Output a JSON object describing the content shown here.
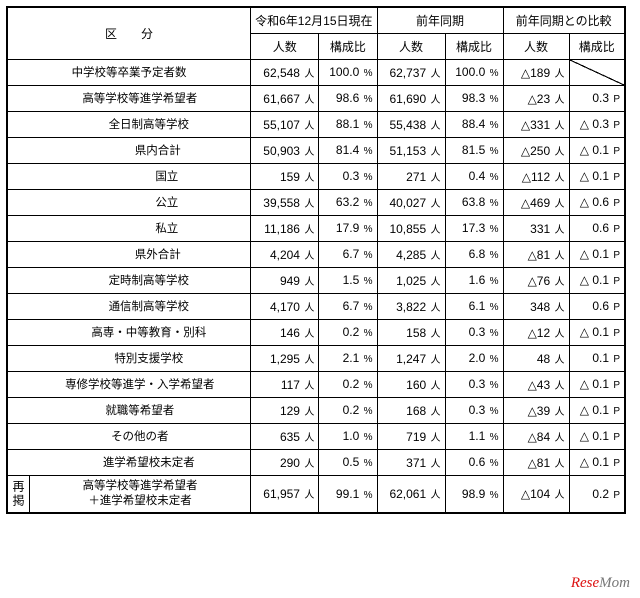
{
  "header": {
    "kubun": "区　　分",
    "current": "令和6年12月15日現在",
    "prev": "前年同期",
    "comp": "前年同期との比較",
    "count": "人数",
    "ratio": "構成比"
  },
  "saikei": "再掲",
  "unit_person": "人",
  "unit_pct": "%",
  "unit_p": "P",
  "rows": [
    {
      "indent": 0,
      "label": "中学校等卒業予定者数",
      "c1": "62,548",
      "c2": "100.0",
      "p1": "62,737",
      "p2": "100.0",
      "d1": "△189",
      "d2": null,
      "slash": true
    },
    {
      "indent": 1,
      "label": "高等学校等進学希望者",
      "c1": "61,667",
      "c2": "98.6",
      "p1": "61,690",
      "p2": "98.3",
      "d1": "△23",
      "d2": "0.3"
    },
    {
      "indent": 2,
      "label": "全日制高等学校",
      "c1": "55,107",
      "c2": "88.1",
      "p1": "55,438",
      "p2": "88.4",
      "d1": "△331",
      "d2": "△ 0.3"
    },
    {
      "indent": 3,
      "label": "県内合計",
      "c1": "50,903",
      "c2": "81.4",
      "p1": "51,153",
      "p2": "81.5",
      "d1": "△250",
      "d2": "△ 0.1"
    },
    {
      "indent": 4,
      "label": "国立",
      "c1": "159",
      "c2": "0.3",
      "p1": "271",
      "p2": "0.4",
      "d1": "△112",
      "d2": "△ 0.1"
    },
    {
      "indent": 4,
      "label": "公立",
      "c1": "39,558",
      "c2": "63.2",
      "p1": "40,027",
      "p2": "63.8",
      "d1": "△469",
      "d2": "△ 0.6"
    },
    {
      "indent": 4,
      "label": "私立",
      "c1": "11,186",
      "c2": "17.9",
      "p1": "10,855",
      "p2": "17.3",
      "d1": "331",
      "d2": "0.6"
    },
    {
      "indent": 3,
      "label": "県外合計",
      "c1": "4,204",
      "c2": "6.7",
      "p1": "4,285",
      "p2": "6.8",
      "d1": "△81",
      "d2": "△ 0.1"
    },
    {
      "indent": 2,
      "label": "定時制高等学校",
      "c1": "949",
      "c2": "1.5",
      "p1": "1,025",
      "p2": "1.6",
      "d1": "△76",
      "d2": "△ 0.1"
    },
    {
      "indent": 2,
      "label": "通信制高等学校",
      "c1": "4,170",
      "c2": "6.7",
      "p1": "3,822",
      "p2": "6.1",
      "d1": "348",
      "d2": "0.6"
    },
    {
      "indent": 2,
      "label": "高専・中等教育・別科",
      "c1": "146",
      "c2": "0.2",
      "p1": "158",
      "p2": "0.3",
      "d1": "△12",
      "d2": "△ 0.1"
    },
    {
      "indent": 2,
      "label": "特別支援学校",
      "c1": "1,295",
      "c2": "2.1",
      "p1": "1,247",
      "p2": "2.0",
      "d1": "48",
      "d2": "0.1"
    },
    {
      "indent": 1,
      "label": "専修学校等進学・入学希望者",
      "c1": "117",
      "c2": "0.2",
      "p1": "160",
      "p2": "0.3",
      "d1": "△43",
      "d2": "△ 0.1"
    },
    {
      "indent": 1,
      "label": "就職等希望者",
      "c1": "129",
      "c2": "0.2",
      "p1": "168",
      "p2": "0.3",
      "d1": "△39",
      "d2": "△ 0.1"
    },
    {
      "indent": 1,
      "label": "その他の者",
      "c1": "635",
      "c2": "1.0",
      "p1": "719",
      "p2": "1.1",
      "d1": "△84",
      "d2": "△ 0.1"
    },
    {
      "indent": 2,
      "label": "進学希望校未定者",
      "c1": "290",
      "c2": "0.5",
      "p1": "371",
      "p2": "0.6",
      "d1": "△81",
      "d2": "△ 0.1"
    }
  ],
  "saikei_row": {
    "label": "高等学校等進学希望者\n＋進学希望校未定者",
    "c1": "61,957",
    "c2": "99.1",
    "p1": "62,061",
    "p2": "98.9",
    "d1": "△104",
    "d2": "0.2"
  },
  "watermark": {
    "r": "Rese",
    "m": "Mom"
  }
}
